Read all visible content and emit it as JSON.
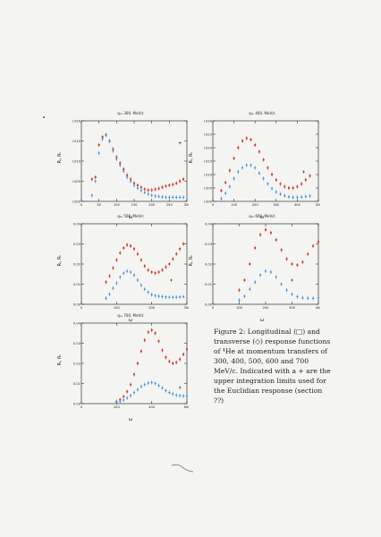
{
  "figure": {
    "caption": "Figure 2: Longitudinal (□) and transverse (◇) response functions of ⁴He at momentum transfers of 300, 400, 500, 600 and 700 MeV/c. Indicated with a + are the upper integration limits used for the Euclidian response (section ??)",
    "colors": {
      "longitudinal": "#d23a2e",
      "transverse": "#3c8fd6",
      "axis": "#333333"
    }
  },
  "chart_data": [
    {
      "type": "scatter",
      "title": "q= 300. MeV/c",
      "xlabel": "ω",
      "ylabel": "Rₗ, Rₜ",
      "xlim": [
        0,
        300
      ],
      "ylim": [
        0,
        0.02
      ],
      "yticks": [
        "0.000",
        "0.005",
        "0.010",
        "0.015",
        "0.020"
      ],
      "xticks": [
        "0",
        "50",
        "100",
        "150",
        "200",
        "250",
        "300"
      ],
      "upper_limit": {
        "x": 280,
        "y": 0.0145
      },
      "series": [
        {
          "name": "longitudinal",
          "x": [
            30,
            40,
            50,
            60,
            70,
            80,
            90,
            100,
            110,
            120,
            130,
            140,
            150,
            160,
            170,
            180,
            190,
            200,
            210,
            220,
            230,
            240,
            250,
            260,
            270,
            280,
            290
          ],
          "y": [
            0.0055,
            0.006,
            0.014,
            0.016,
            0.0165,
            0.015,
            0.013,
            0.011,
            0.0095,
            0.008,
            0.0065,
            0.0055,
            0.0045,
            0.004,
            0.0035,
            0.003,
            0.0028,
            0.0028,
            0.003,
            0.0032,
            0.0035,
            0.0038,
            0.004,
            0.0042,
            0.0045,
            0.005,
            0.0055
          ]
        },
        {
          "name": "transverse",
          "x": [
            30,
            40,
            50,
            60,
            70,
            80,
            90,
            100,
            110,
            120,
            130,
            140,
            150,
            160,
            170,
            180,
            190,
            200,
            210,
            220,
            230,
            240,
            250,
            260,
            270,
            280,
            290
          ],
          "y": [
            0.0015,
            0.005,
            0.012,
            0.0155,
            0.0165,
            0.015,
            0.0125,
            0.0105,
            0.009,
            0.0075,
            0.006,
            0.005,
            0.004,
            0.0033,
            0.0027,
            0.0022,
            0.0018,
            0.0015,
            0.0013,
            0.0012,
            0.0011,
            0.001,
            0.001,
            0.001,
            0.001,
            0.001,
            0.001
          ]
        }
      ]
    },
    {
      "type": "scatter",
      "title": "q= 400. MeV/c",
      "xlabel": "ω",
      "ylabel": "Rₗ, Rₜ",
      "xlim": [
        0,
        500
      ],
      "ylim": [
        0,
        0.03
      ],
      "yticks": [
        "0.000",
        "0.005",
        "0.010",
        "0.015",
        "0.020",
        "0.025",
        "0.030"
      ],
      "xticks": [
        "0",
        "100",
        "200",
        "300",
        "400",
        "500"
      ],
      "upper_limit": {
        "x": 430,
        "y": 0.011
      },
      "series": [
        {
          "name": "longitudinal",
          "x": [
            40,
            60,
            80,
            100,
            120,
            140,
            160,
            180,
            200,
            220,
            240,
            260,
            280,
            300,
            320,
            340,
            360,
            380,
            400,
            420,
            440,
            460
          ],
          "y": [
            0.004,
            0.007,
            0.0115,
            0.016,
            0.02,
            0.0225,
            0.0235,
            0.023,
            0.021,
            0.0185,
            0.0155,
            0.0125,
            0.01,
            0.008,
            0.0065,
            0.0055,
            0.005,
            0.005,
            0.0055,
            0.0065,
            0.008,
            0.0095
          ]
        },
        {
          "name": "transverse",
          "x": [
            40,
            60,
            80,
            100,
            120,
            140,
            160,
            180,
            200,
            220,
            240,
            260,
            280,
            300,
            320,
            340,
            360,
            380,
            400,
            420,
            440,
            460
          ],
          "y": [
            0.001,
            0.003,
            0.0055,
            0.0085,
            0.011,
            0.0125,
            0.0135,
            0.0135,
            0.0125,
            0.0105,
            0.0085,
            0.0065,
            0.0048,
            0.0035,
            0.0027,
            0.0021,
            0.0017,
            0.0015,
            0.0015,
            0.0016,
            0.0018,
            0.002
          ]
        }
      ]
    },
    {
      "type": "scatter",
      "title": "q= 500. MeV/c",
      "xlabel": "ω",
      "ylabel": "Rₗ, Rₜ",
      "xlim": [
        0,
        300
      ],
      "ylim": [
        0,
        0.04
      ],
      "yticks": [
        "0.00",
        "0.01",
        "0.02",
        "0.03",
        "0.04"
      ],
      "xticks": [
        "0",
        "100",
        "200",
        "300"
      ],
      "upper_limit": {
        "x": 255,
        "y": 0.012
      },
      "series": [
        {
          "name": "longitudinal",
          "x": [
            70,
            80,
            90,
            100,
            110,
            120,
            130,
            140,
            150,
            160,
            170,
            180,
            190,
            200,
            210,
            220,
            230,
            240,
            250,
            260,
            270,
            280,
            290
          ],
          "y": [
            0.011,
            0.014,
            0.018,
            0.022,
            0.0255,
            0.028,
            0.0295,
            0.029,
            0.0275,
            0.025,
            0.022,
            0.019,
            0.017,
            0.016,
            0.0155,
            0.016,
            0.017,
            0.0185,
            0.02,
            0.0225,
            0.025,
            0.0275,
            0.03
          ]
        },
        {
          "name": "transverse",
          "x": [
            70,
            80,
            90,
            100,
            110,
            120,
            130,
            140,
            150,
            160,
            170,
            180,
            190,
            200,
            210,
            220,
            230,
            240,
            250,
            260,
            270,
            280,
            290
          ],
          "y": [
            0.003,
            0.005,
            0.008,
            0.0105,
            0.0135,
            0.0155,
            0.0165,
            0.016,
            0.0145,
            0.012,
            0.0095,
            0.0075,
            0.006,
            0.0048,
            0.0042,
            0.004,
            0.0038,
            0.0036,
            0.0035,
            0.0035,
            0.0035,
            0.0036,
            0.0038
          ]
        }
      ]
    },
    {
      "type": "scatter",
      "title": "q= 600. MeV/c",
      "xlabel": "ω",
      "ylabel": "Rₗ, Rₜ",
      "xlim": [
        0,
        400
      ],
      "ylim": [
        0,
        0.04
      ],
      "yticks": [
        "0.00",
        "0.01",
        "0.02",
        "0.03",
        "0.04"
      ],
      "xticks": [
        "0",
        "100",
        "200",
        "300",
        "400"
      ],
      "upper_limit": {
        "x": 300,
        "y": 0.012
      },
      "series": [
        {
          "name": "longitudinal",
          "x": [
            100,
            120,
            140,
            160,
            180,
            200,
            220,
            240,
            260,
            280,
            300,
            320,
            340,
            360,
            380,
            400
          ],
          "y": [
            0.007,
            0.012,
            0.02,
            0.028,
            0.0345,
            0.037,
            0.0355,
            0.032,
            0.027,
            0.0225,
            0.02,
            0.0195,
            0.021,
            0.025,
            0.029,
            0.031
          ]
        },
        {
          "name": "transverse",
          "x": [
            100,
            120,
            140,
            160,
            180,
            200,
            220,
            240,
            260,
            280,
            300,
            320,
            340,
            360,
            380,
            400
          ],
          "y": [
            0.002,
            0.004,
            0.0075,
            0.011,
            0.0145,
            0.0165,
            0.016,
            0.0135,
            0.01,
            0.007,
            0.005,
            0.0038,
            0.0032,
            0.003,
            0.003,
            0.0032
          ]
        }
      ]
    },
    {
      "type": "scatter",
      "title": "q= 700. MeV/c",
      "xlabel": "ω",
      "ylabel": "Rₗ, Rₜ",
      "xlim": [
        0,
        600
      ],
      "ylim": [
        0,
        0.04
      ],
      "yticks": [
        "0.00",
        "0.01",
        "0.02",
        "0.03",
        "0.04"
      ],
      "xticks": [
        "0",
        "200",
        "400",
        "600"
      ],
      "upper_limit": {
        "x": 560,
        "y": 0.008
      },
      "series": [
        {
          "name": "longitudinal",
          "x": [
            200,
            220,
            240,
            260,
            280,
            300,
            320,
            340,
            360,
            380,
            400,
            420,
            440,
            460,
            480,
            500,
            520,
            540,
            560,
            580,
            600
          ],
          "y": [
            0.001,
            0.002,
            0.0035,
            0.006,
            0.0095,
            0.0145,
            0.02,
            0.026,
            0.0315,
            0.0355,
            0.0365,
            0.035,
            0.031,
            0.0265,
            0.023,
            0.021,
            0.02,
            0.0205,
            0.022,
            0.0245,
            0.027
          ]
        },
        {
          "name": "transverse",
          "x": [
            200,
            220,
            240,
            260,
            280,
            300,
            320,
            340,
            360,
            380,
            400,
            420,
            440,
            460,
            480,
            500,
            520,
            540,
            560,
            580,
            600
          ],
          "y": [
            0.0005,
            0.001,
            0.0018,
            0.0028,
            0.004,
            0.0055,
            0.007,
            0.0085,
            0.0095,
            0.0102,
            0.0105,
            0.01,
            0.009,
            0.0078,
            0.0065,
            0.0055,
            0.0048,
            0.0042,
            0.004,
            0.0038,
            0.0037
          ]
        }
      ]
    }
  ]
}
